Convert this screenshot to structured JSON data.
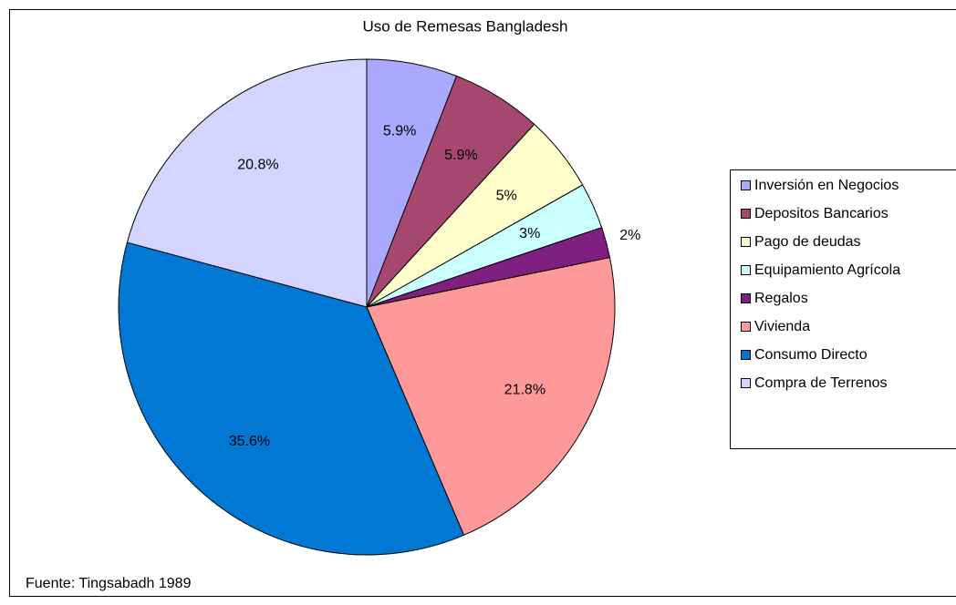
{
  "chart_data": {
    "type": "pie",
    "title": "Uso de Remesas Bangladesh",
    "categories": [
      "Inversión en Negocios",
      "Depositos Bancarios",
      "Pago de deudas",
      "Equipamiento Agrícola",
      "Regalos",
      "Vivienda",
      "Consumo Directo",
      "Compra de Terrenos"
    ],
    "values": [
      5.9,
      5.9,
      5,
      3,
      2,
      21.8,
      35.6,
      20.8
    ],
    "value_labels": [
      "5.9%",
      "5.9%",
      "5%",
      "3%",
      "2%",
      "21.8%",
      "35.6%",
      "20.8%"
    ],
    "colors": [
      "#a9a9ff",
      "#a5476e",
      "#ffffcc",
      "#ccffff",
      "#7f1f7f",
      "#ff9999",
      "#0078d4",
      "#d4d4ff"
    ],
    "legend": "right",
    "source": "Fuente: Tingsabadh 1989"
  }
}
